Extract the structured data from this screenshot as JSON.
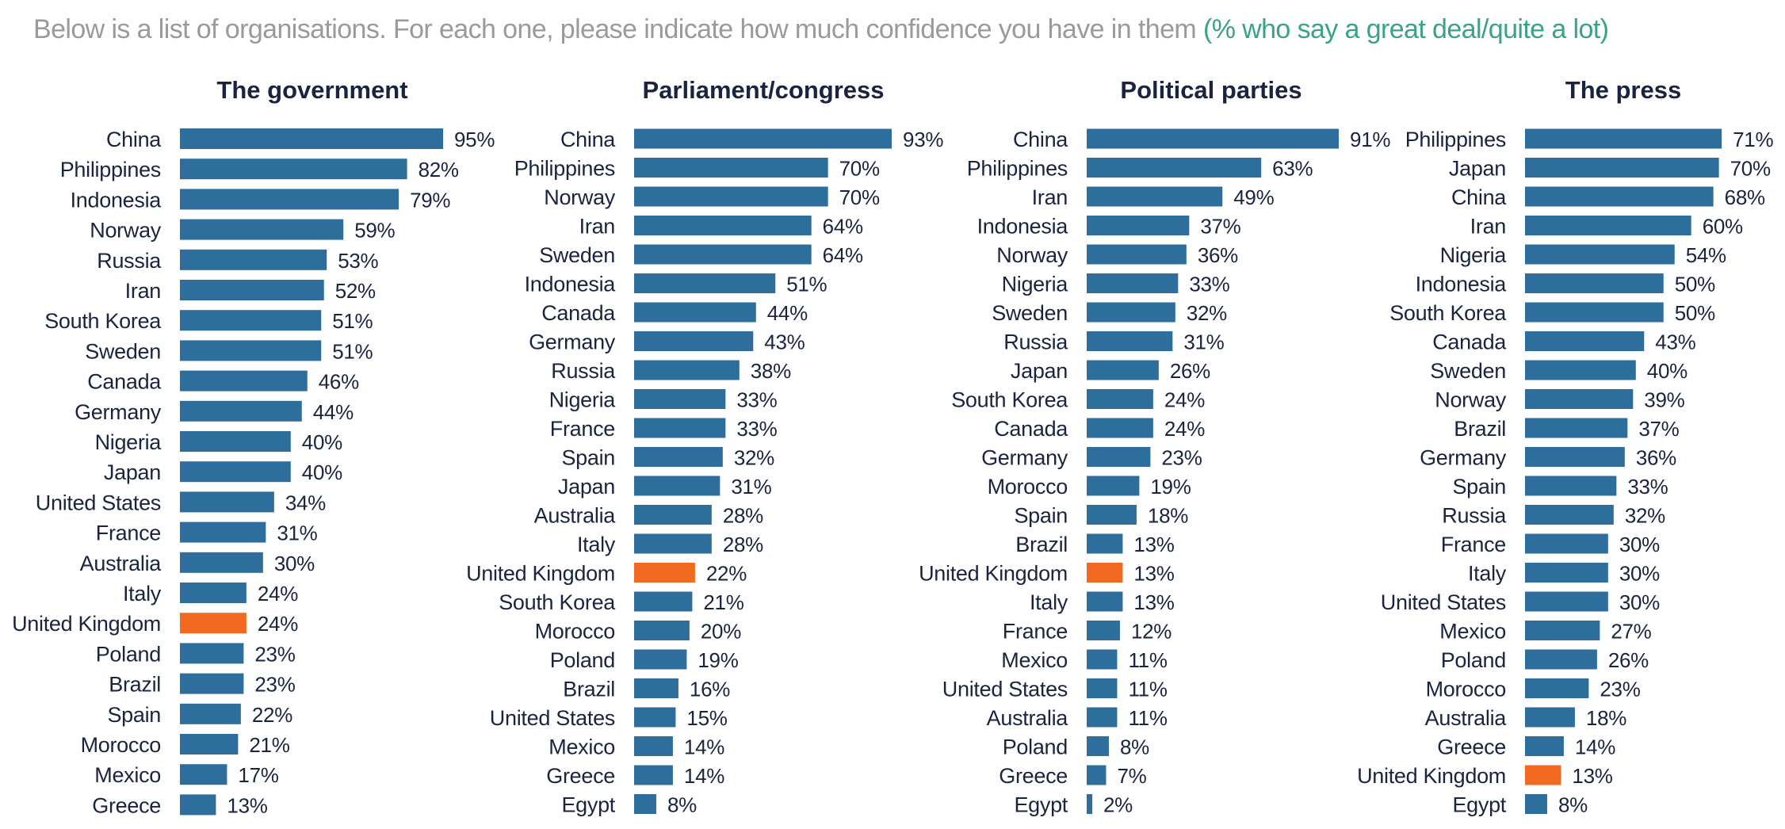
{
  "intro": {
    "text": "Below is a list of organisations. For each one, please indicate how much confidence you have in them",
    "highlight": "(% who say a great deal/quite a lot)"
  },
  "colors": {
    "bar": "#2e6e9c",
    "highlight_bar": "#f26a1f",
    "text": "#1a2440",
    "intro_grey": "#9a9a9a",
    "intro_green": "#3aa385"
  },
  "chart_data": [
    {
      "type": "bar",
      "orientation": "horizontal",
      "title": "The government",
      "unit": "%",
      "highlight": "United Kingdom",
      "xlim": [
        0,
        100
      ],
      "categories": [
        "China",
        "Philippines",
        "Indonesia",
        "Norway",
        "Russia",
        "Iran",
        "South Korea",
        "Sweden",
        "Canada",
        "Germany",
        "Nigeria",
        "Japan",
        "United States",
        "France",
        "Australia",
        "Italy",
        "United Kingdom",
        "Poland",
        "Brazil",
        "Spain",
        "Morocco",
        "Mexico",
        "Greece"
      ],
      "values": [
        95,
        82,
        79,
        59,
        53,
        52,
        51,
        51,
        46,
        44,
        40,
        40,
        34,
        31,
        30,
        24,
        24,
        23,
        23,
        22,
        21,
        17,
        13
      ]
    },
    {
      "type": "bar",
      "orientation": "horizontal",
      "title": "Parliament/congress",
      "unit": "%",
      "highlight": "United Kingdom",
      "xlim": [
        0,
        100
      ],
      "categories": [
        "China",
        "Philippines",
        "Norway",
        "Iran",
        "Sweden",
        "Indonesia",
        "Canada",
        "Germany",
        "Russia",
        "Nigeria",
        "France",
        "Spain",
        "Japan",
        "Australia",
        "Italy",
        "United Kingdom",
        "South Korea",
        "Morocco",
        "Poland",
        "Brazil",
        "United States",
        "Mexico",
        "Greece",
        "Egypt"
      ],
      "values": [
        93,
        70,
        70,
        64,
        64,
        51,
        44,
        43,
        38,
        33,
        33,
        32,
        31,
        28,
        28,
        22,
        21,
        20,
        19,
        16,
        15,
        14,
        14,
        8
      ]
    },
    {
      "type": "bar",
      "orientation": "horizontal",
      "title": "Political parties",
      "unit": "%",
      "highlight": "United Kingdom",
      "xlim": [
        0,
        100
      ],
      "categories": [
        "China",
        "Philippines",
        "Iran",
        "Indonesia",
        "Norway",
        "Nigeria",
        "Sweden",
        "Russia",
        "Japan",
        "South Korea",
        "Canada",
        "Germany",
        "Morocco",
        "Spain",
        "Brazil",
        "United Kingdom",
        "Italy",
        "France",
        "Mexico",
        "United States",
        "Australia",
        "Poland",
        "Greece",
        "Egypt"
      ],
      "values": [
        91,
        63,
        49,
        37,
        36,
        33,
        32,
        31,
        26,
        24,
        24,
        23,
        19,
        18,
        13,
        13,
        13,
        12,
        11,
        11,
        11,
        8,
        7,
        2
      ]
    },
    {
      "type": "bar",
      "orientation": "horizontal",
      "title": "The press",
      "unit": "%",
      "highlight": "United Kingdom",
      "xlim": [
        0,
        100
      ],
      "categories": [
        "Philippines",
        "Japan",
        "China",
        "Iran",
        "Nigeria",
        "Indonesia",
        "South Korea",
        "Canada",
        "Sweden",
        "Norway",
        "Brazil",
        "Germany",
        "Spain",
        "Russia",
        "France",
        "Italy",
        "United States",
        "Mexico",
        "Poland",
        "Morocco",
        "Australia",
        "Greece",
        "United Kingdom",
        "Egypt"
      ],
      "values": [
        71,
        70,
        68,
        60,
        54,
        50,
        50,
        43,
        40,
        39,
        37,
        36,
        33,
        32,
        30,
        30,
        30,
        27,
        26,
        23,
        18,
        14,
        13,
        8
      ]
    }
  ]
}
